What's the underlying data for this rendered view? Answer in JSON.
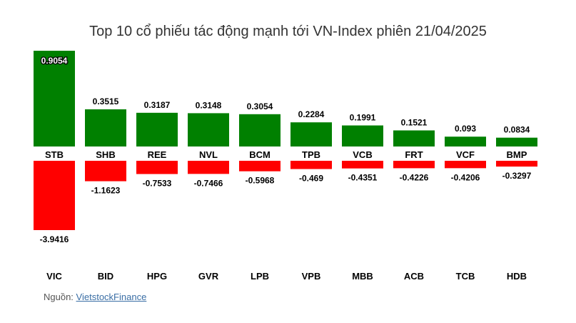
{
  "source": {
    "prefix": "Nguồn: ",
    "link_text": "VietstockFinance"
  },
  "chart_data": {
    "type": "bar",
    "title": "Top 10 cổ phiếu tác động mạnh tới VN-Index phiên 21/04/2025",
    "xlabel": "",
    "ylabel": "",
    "ylim": [
      -3.9416,
      0.9054
    ],
    "grid": false,
    "colors": {
      "positive": "#008000",
      "negative": "#ff0000"
    },
    "series": [
      {
        "categories": [
          "STB",
          "SHB",
          "REE",
          "NVL",
          "BCM",
          "TPB",
          "VCB",
          "FRT",
          "VCF",
          "BMP"
        ],
        "values": [
          0.9054,
          0.3515,
          0.3187,
          0.3148,
          0.3054,
          0.2284,
          0.1991,
          0.1521,
          0.093,
          0.0834
        ],
        "labels": [
          "0.9054",
          "0.3515",
          "0.3187",
          "0.3148",
          "0.3054",
          "0.2284",
          "0.1991",
          "0.1521",
          "0.093",
          "0.0834"
        ]
      },
      {
        "categories": [
          "VIC",
          "BID",
          "HPG",
          "GVR",
          "LPB",
          "VPB",
          "MBB",
          "ACB",
          "TCB",
          "HDB"
        ],
        "values": [
          -3.9416,
          -1.1623,
          -0.7533,
          -0.7466,
          -0.5968,
          -0.469,
          -0.4351,
          -0.4226,
          -0.4206,
          -0.3297
        ],
        "labels": [
          "-3.9416",
          "-1.1623",
          "-0.7533",
          "-0.7466",
          "-0.5968",
          "-0.469",
          "-0.4351",
          "-0.4226",
          "-0.4206",
          "-0.3297"
        ]
      }
    ]
  }
}
